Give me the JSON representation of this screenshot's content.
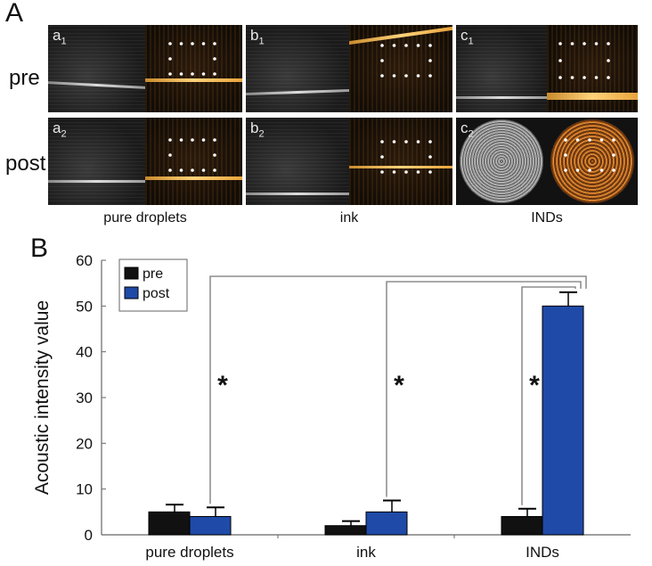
{
  "panel_a": {
    "label": "A",
    "row_labels": [
      "pre",
      "post"
    ],
    "column_labels": [
      "pure droplets",
      "ink",
      "INDs"
    ],
    "tiles": [
      {
        "main": "a",
        "sub": "1"
      },
      {
        "main": "b",
        "sub": "1"
      },
      {
        "main": "c",
        "sub": "1"
      },
      {
        "main": "a",
        "sub": "2"
      },
      {
        "main": "b",
        "sub": "2"
      },
      {
        "main": "c",
        "sub": "2"
      }
    ]
  },
  "panel_b": {
    "label": "B"
  },
  "chart_data": {
    "type": "bar",
    "categories": [
      "pure droplets",
      "ink",
      "INDs"
    ],
    "series": [
      {
        "name": "pre",
        "values": [
          5,
          2,
          4
        ],
        "errors": [
          1.6,
          1.0,
          1.7
        ],
        "color": "#111111"
      },
      {
        "name": "post",
        "values": [
          4,
          5,
          50
        ],
        "errors": [
          2.0,
          2.5,
          3.0
        ],
        "color": "#1f4aa8"
      }
    ],
    "ylabel": "Acoustic intensity value",
    "xlabel": "",
    "ylim": [
      0,
      60
    ],
    "yticks": [
      0,
      10,
      20,
      30,
      40,
      50,
      60
    ],
    "legend_position": "top-left",
    "significance_marker": "*",
    "significance_pairs": [
      {
        "from": "pure droplets",
        "to": "INDs"
      },
      {
        "from": "ink",
        "to": "INDs"
      },
      {
        "from": "INDs pre",
        "to": "INDs post"
      }
    ]
  }
}
